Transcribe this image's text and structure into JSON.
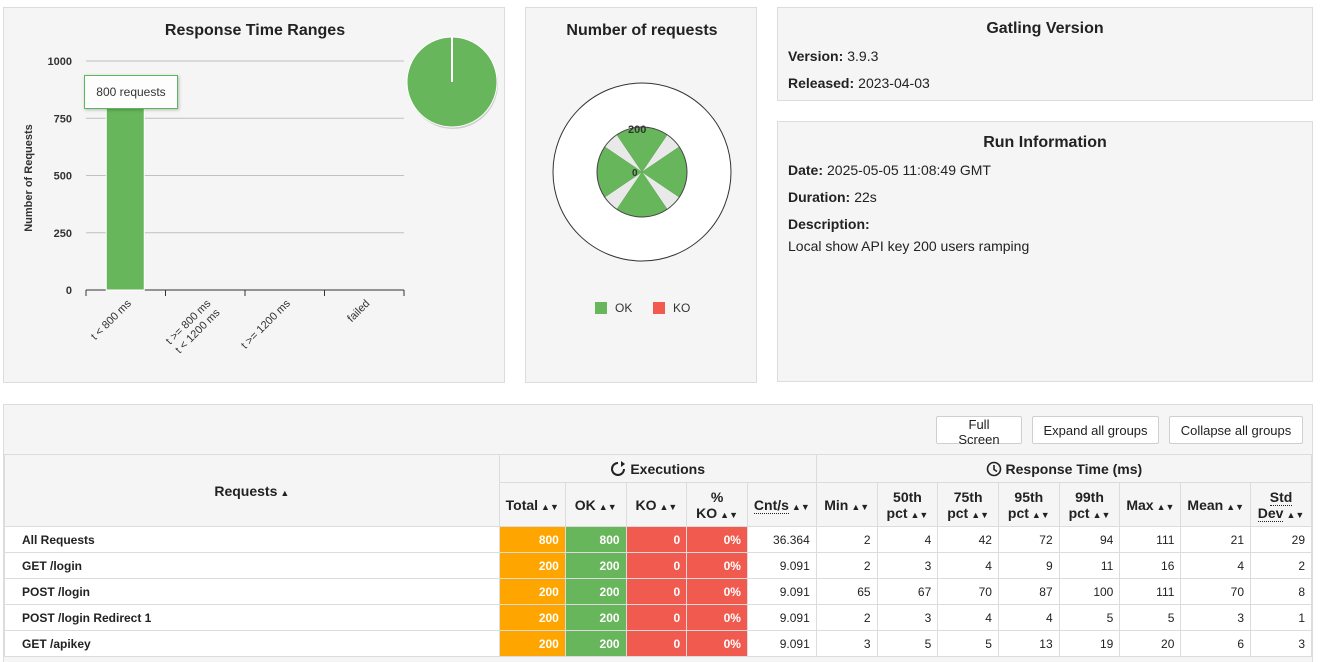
{
  "response_time_ranges": {
    "title": "Response Time Ranges",
    "ylabel": "Number of Requests",
    "tooltip": "800 requests",
    "chart_data": {
      "type": "bar",
      "categories": [
        "t < 800 ms",
        "t >= 800 ms\nt < 1200 ms",
        "t >= 1200 ms",
        "failed"
      ],
      "values": [
        800,
        0,
        0,
        0
      ],
      "yticks": [
        "0",
        "250",
        "500",
        "750",
        "1000"
      ],
      "ylim": [
        0,
        1000
      ],
      "grid": true,
      "bar_color": "#68b65c",
      "pie": {
        "type": "pie",
        "values": [
          800,
          0,
          0,
          0
        ],
        "colors": [
          "#68b65c",
          "#ffa500",
          "#f15b4f",
          "#d9534f"
        ]
      }
    }
  },
  "number_of_requests": {
    "title": "Number of requests",
    "chart_data": {
      "type": "pie",
      "categories": [
        "GET /login",
        "POST /login",
        "POST /login Redirect 1",
        "GET /apikey"
      ],
      "values": [
        200,
        200,
        200,
        200
      ],
      "radial_labels": [
        "200",
        "0"
      ],
      "ok_color": "#68b65c",
      "ko_color": "#f15b4f"
    },
    "legend": {
      "ok": "OK",
      "ko": "KO"
    }
  },
  "gatling_version": {
    "title": "Gatling Version",
    "version_label": "Version:",
    "version": "3.9.3",
    "released_label": "Released:",
    "released": "2023-04-03"
  },
  "run_information": {
    "title": "Run Information",
    "date_label": "Date:",
    "date": "2025-05-05 11:08:49 GMT",
    "duration_label": "Duration:",
    "duration": "22s",
    "description_label": "Description:",
    "description": "Local show API key 200 users ramping"
  },
  "buttons": {
    "full_screen": "Full Screen",
    "expand": "Expand all groups",
    "collapse": "Collapse all groups"
  },
  "table": {
    "requests_header": "Requests",
    "executions_header": "Executions",
    "response_time_header": "Response Time (ms)",
    "columns": {
      "total": "Total",
      "ok": "OK",
      "ko": "KO",
      "pko": "% KO",
      "cnt": "Cnt/s",
      "min": "Min",
      "p50a": "50th",
      "p50b": "pct",
      "p75a": "75th",
      "p75b": "pct",
      "p95a": "95th",
      "p95b": "pct",
      "p99a": "99th",
      "p99b": "pct",
      "max": "Max",
      "mean": "Mean",
      "stda": "Std",
      "stdb": "Dev"
    },
    "rows": [
      {
        "name": "All Requests",
        "total": "800",
        "ok": "800",
        "ko": "0",
        "pko": "0%",
        "cnt": "36.364",
        "min": "2",
        "p50": "4",
        "p75": "42",
        "p95": "72",
        "p99": "94",
        "max": "111",
        "mean": "21",
        "std": "29"
      },
      {
        "name": "GET /login",
        "total": "200",
        "ok": "200",
        "ko": "0",
        "pko": "0%",
        "cnt": "9.091",
        "min": "2",
        "p50": "3",
        "p75": "4",
        "p95": "9",
        "p99": "11",
        "max": "16",
        "mean": "4",
        "std": "2"
      },
      {
        "name": "POST /login",
        "total": "200",
        "ok": "200",
        "ko": "0",
        "pko": "0%",
        "cnt": "9.091",
        "min": "65",
        "p50": "67",
        "p75": "70",
        "p95": "87",
        "p99": "100",
        "max": "111",
        "mean": "70",
        "std": "8"
      },
      {
        "name": "POST /login Redirect 1",
        "total": "200",
        "ok": "200",
        "ko": "0",
        "pko": "0%",
        "cnt": "9.091",
        "min": "2",
        "p50": "3",
        "p75": "4",
        "p95": "4",
        "p99": "5",
        "max": "5",
        "mean": "3",
        "std": "1"
      },
      {
        "name": "GET /apikey",
        "total": "200",
        "ok": "200",
        "ko": "0",
        "pko": "0%",
        "cnt": "9.091",
        "min": "3",
        "p50": "5",
        "p75": "5",
        "p95": "13",
        "p99": "19",
        "max": "20",
        "mean": "6",
        "std": "3"
      }
    ]
  }
}
